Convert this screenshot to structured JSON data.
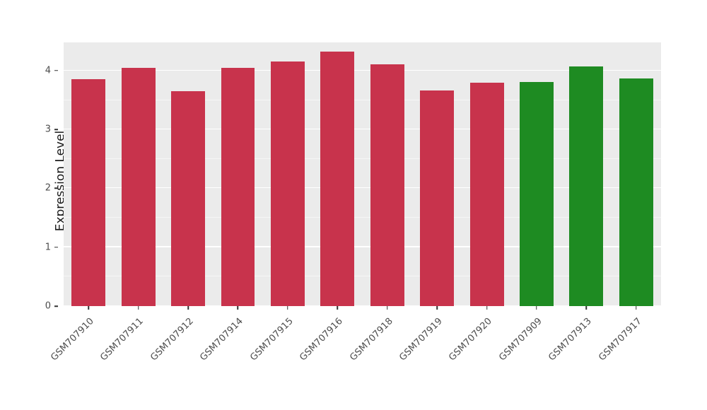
{
  "chart_data": {
    "type": "bar",
    "title": "",
    "xlabel": "",
    "ylabel": "Expression Level",
    "categories": [
      "GSM707910",
      "GSM707911",
      "GSM707912",
      "GSM707914",
      "GSM707915",
      "GSM707916",
      "GSM707918",
      "GSM707919",
      "GSM707920",
      "GSM707909",
      "GSM707913",
      "GSM707917"
    ],
    "values": [
      3.86,
      4.05,
      3.65,
      4.05,
      4.16,
      4.33,
      4.11,
      3.66,
      3.79,
      3.81,
      4.07,
      3.87
    ],
    "colors": [
      "#C8334C",
      "#C8334C",
      "#C8334C",
      "#C8334C",
      "#C8334C",
      "#C8334C",
      "#C8334C",
      "#C8334C",
      "#C8334C",
      "#1E8B22",
      "#1E8B22",
      "#1E8B22"
    ],
    "group_colors": {
      "red": "#C8334C",
      "green": "#1E8B22"
    },
    "ylim": [
      0,
      4.48
    ],
    "yticks": [
      0,
      1,
      2,
      3,
      4
    ],
    "minor_ticks": [
      0.5,
      1.5,
      2.5,
      3.5
    ],
    "panel_background": "#EBEBEB",
    "grid_color": "#FFFFFF",
    "grid": "on",
    "legend": "none"
  }
}
